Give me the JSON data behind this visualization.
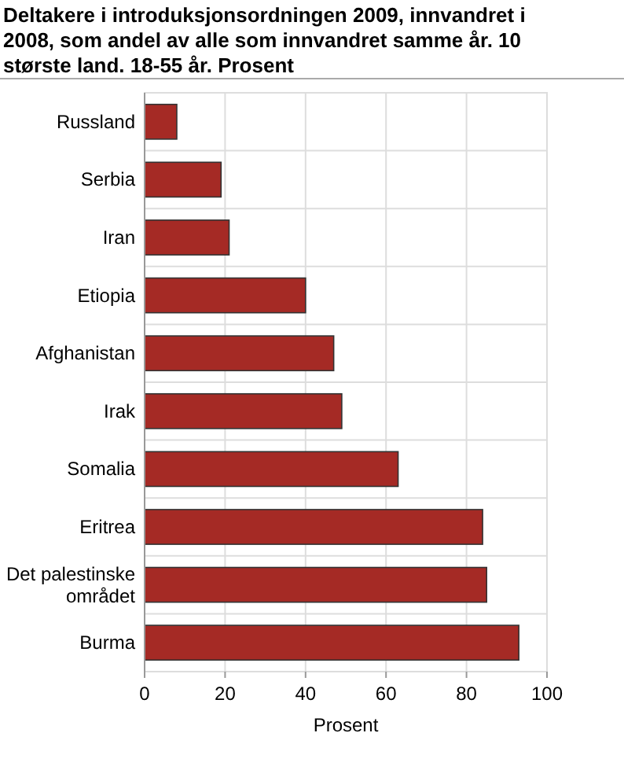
{
  "chart_data": {
    "type": "bar",
    "orientation": "horizontal",
    "title": "Deltakere i introduksjonsordningen 2009, innvandret i 2008, som andel av alle som innvandret samme år. 10 største land. 18-55 år. Prosent",
    "xlabel": "Prosent",
    "categories": [
      "Russland",
      "Serbia",
      "Iran",
      "Etiopia",
      "Afghanistan",
      "Irak",
      "Somalia",
      "Eritrea",
      "Det palestinske området",
      "Burma"
    ],
    "values": [
      8,
      19,
      21,
      40,
      47,
      49,
      63,
      84,
      85,
      93
    ],
    "color": "#a52a25",
    "xlim": [
      0,
      100
    ],
    "xticks": [
      0,
      20,
      40,
      60,
      80,
      100
    ],
    "grid": true
  }
}
